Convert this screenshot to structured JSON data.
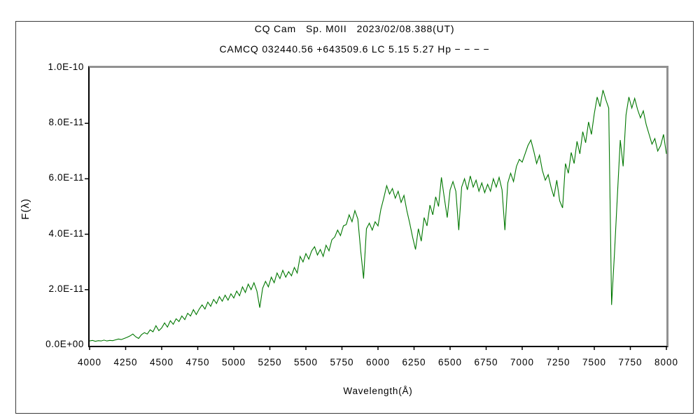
{
  "chart_data": {
    "type": "line",
    "title": "CQ Cam   Sp. M0II   2023/02/08.388(UT)",
    "subtitle": "CAMCQ 032440.56 +643509.6 LC 5.15 5.27 Hp − − − −",
    "xlabel": "Wavelength(Å)",
    "ylabel": "F(λ)",
    "xlim": [
      4000,
      8000
    ],
    "ylim": [
      0,
      1e-10
    ],
    "grid": false,
    "legend": "none",
    "line_color": "#007700",
    "axis_color": "#000000",
    "box_shadow_color": "#919191",
    "x_ticks": [
      4000,
      4250,
      4500,
      4750,
      5000,
      5250,
      5500,
      5750,
      6000,
      6250,
      6500,
      6750,
      7000,
      7250,
      7500,
      7750,
      8000
    ],
    "y_ticks": [
      {
        "value": 1e-10,
        "label": "1.0E-10"
      },
      {
        "value": 8e-11,
        "label": "8.0E-11"
      },
      {
        "value": 6e-11,
        "label": "6.0E-11"
      },
      {
        "value": 4e-11,
        "label": "4.0E-11"
      },
      {
        "value": 2e-11,
        "label": "2.0E-11"
      },
      {
        "value": 0.0,
        "label": "0.0E+00"
      }
    ],
    "series": [
      {
        "name": "spectrum",
        "x_start": 4000,
        "x_step": 20,
        "flux_e11": [
          0.15,
          0.17,
          0.14,
          0.16,
          0.15,
          0.18,
          0.15,
          0.17,
          0.16,
          0.19,
          0.22,
          0.2,
          0.24,
          0.28,
          0.33,
          0.4,
          0.3,
          0.24,
          0.38,
          0.45,
          0.4,
          0.55,
          0.48,
          0.7,
          0.52,
          0.62,
          0.8,
          0.65,
          0.88,
          0.75,
          0.95,
          0.85,
          1.05,
          0.92,
          1.15,
          1.05,
          1.28,
          1.1,
          1.3,
          1.45,
          1.3,
          1.55,
          1.4,
          1.65,
          1.5,
          1.75,
          1.58,
          1.8,
          1.62,
          1.85,
          1.7,
          1.95,
          1.78,
          2.1,
          1.9,
          2.2,
          2.0,
          2.25,
          1.95,
          1.35,
          2.05,
          2.3,
          2.1,
          2.45,
          2.25,
          2.6,
          2.4,
          2.7,
          2.45,
          2.65,
          2.5,
          2.8,
          2.6,
          3.2,
          3.0,
          3.3,
          3.1,
          3.4,
          3.55,
          3.25,
          3.45,
          3.2,
          3.6,
          3.4,
          3.8,
          3.9,
          4.15,
          3.95,
          4.3,
          4.35,
          4.7,
          4.45,
          4.85,
          4.55,
          3.4,
          2.4,
          4.2,
          4.4,
          4.15,
          4.45,
          4.3,
          4.9,
          5.3,
          5.75,
          5.45,
          5.65,
          5.3,
          5.55,
          5.15,
          5.4,
          4.85,
          4.4,
          3.9,
          3.45,
          4.2,
          3.75,
          4.6,
          4.3,
          5.05,
          4.7,
          5.35,
          5.0,
          6.05,
          5.3,
          4.6,
          5.6,
          5.9,
          5.55,
          4.15,
          5.7,
          6.0,
          5.6,
          6.1,
          5.7,
          5.95,
          5.55,
          5.85,
          5.5,
          5.8,
          5.55,
          6.0,
          5.7,
          6.05,
          5.6,
          4.15,
          5.85,
          6.2,
          5.9,
          6.45,
          6.7,
          6.6,
          6.9,
          7.2,
          7.4,
          7.0,
          6.55,
          6.85,
          6.3,
          5.95,
          6.15,
          5.7,
          5.35,
          5.95,
          5.2,
          4.95,
          6.55,
          6.2,
          6.95,
          6.55,
          7.35,
          6.9,
          7.7,
          7.3,
          8.05,
          7.6,
          8.35,
          8.95,
          8.6,
          9.2,
          8.85,
          8.55,
          1.45,
          3.3,
          5.4,
          7.4,
          6.45,
          8.3,
          8.95,
          8.55,
          8.9,
          8.5,
          8.2,
          8.45,
          7.95,
          7.6,
          7.25,
          7.45,
          7.0,
          7.2,
          7.6,
          6.9
        ]
      }
    ]
  }
}
